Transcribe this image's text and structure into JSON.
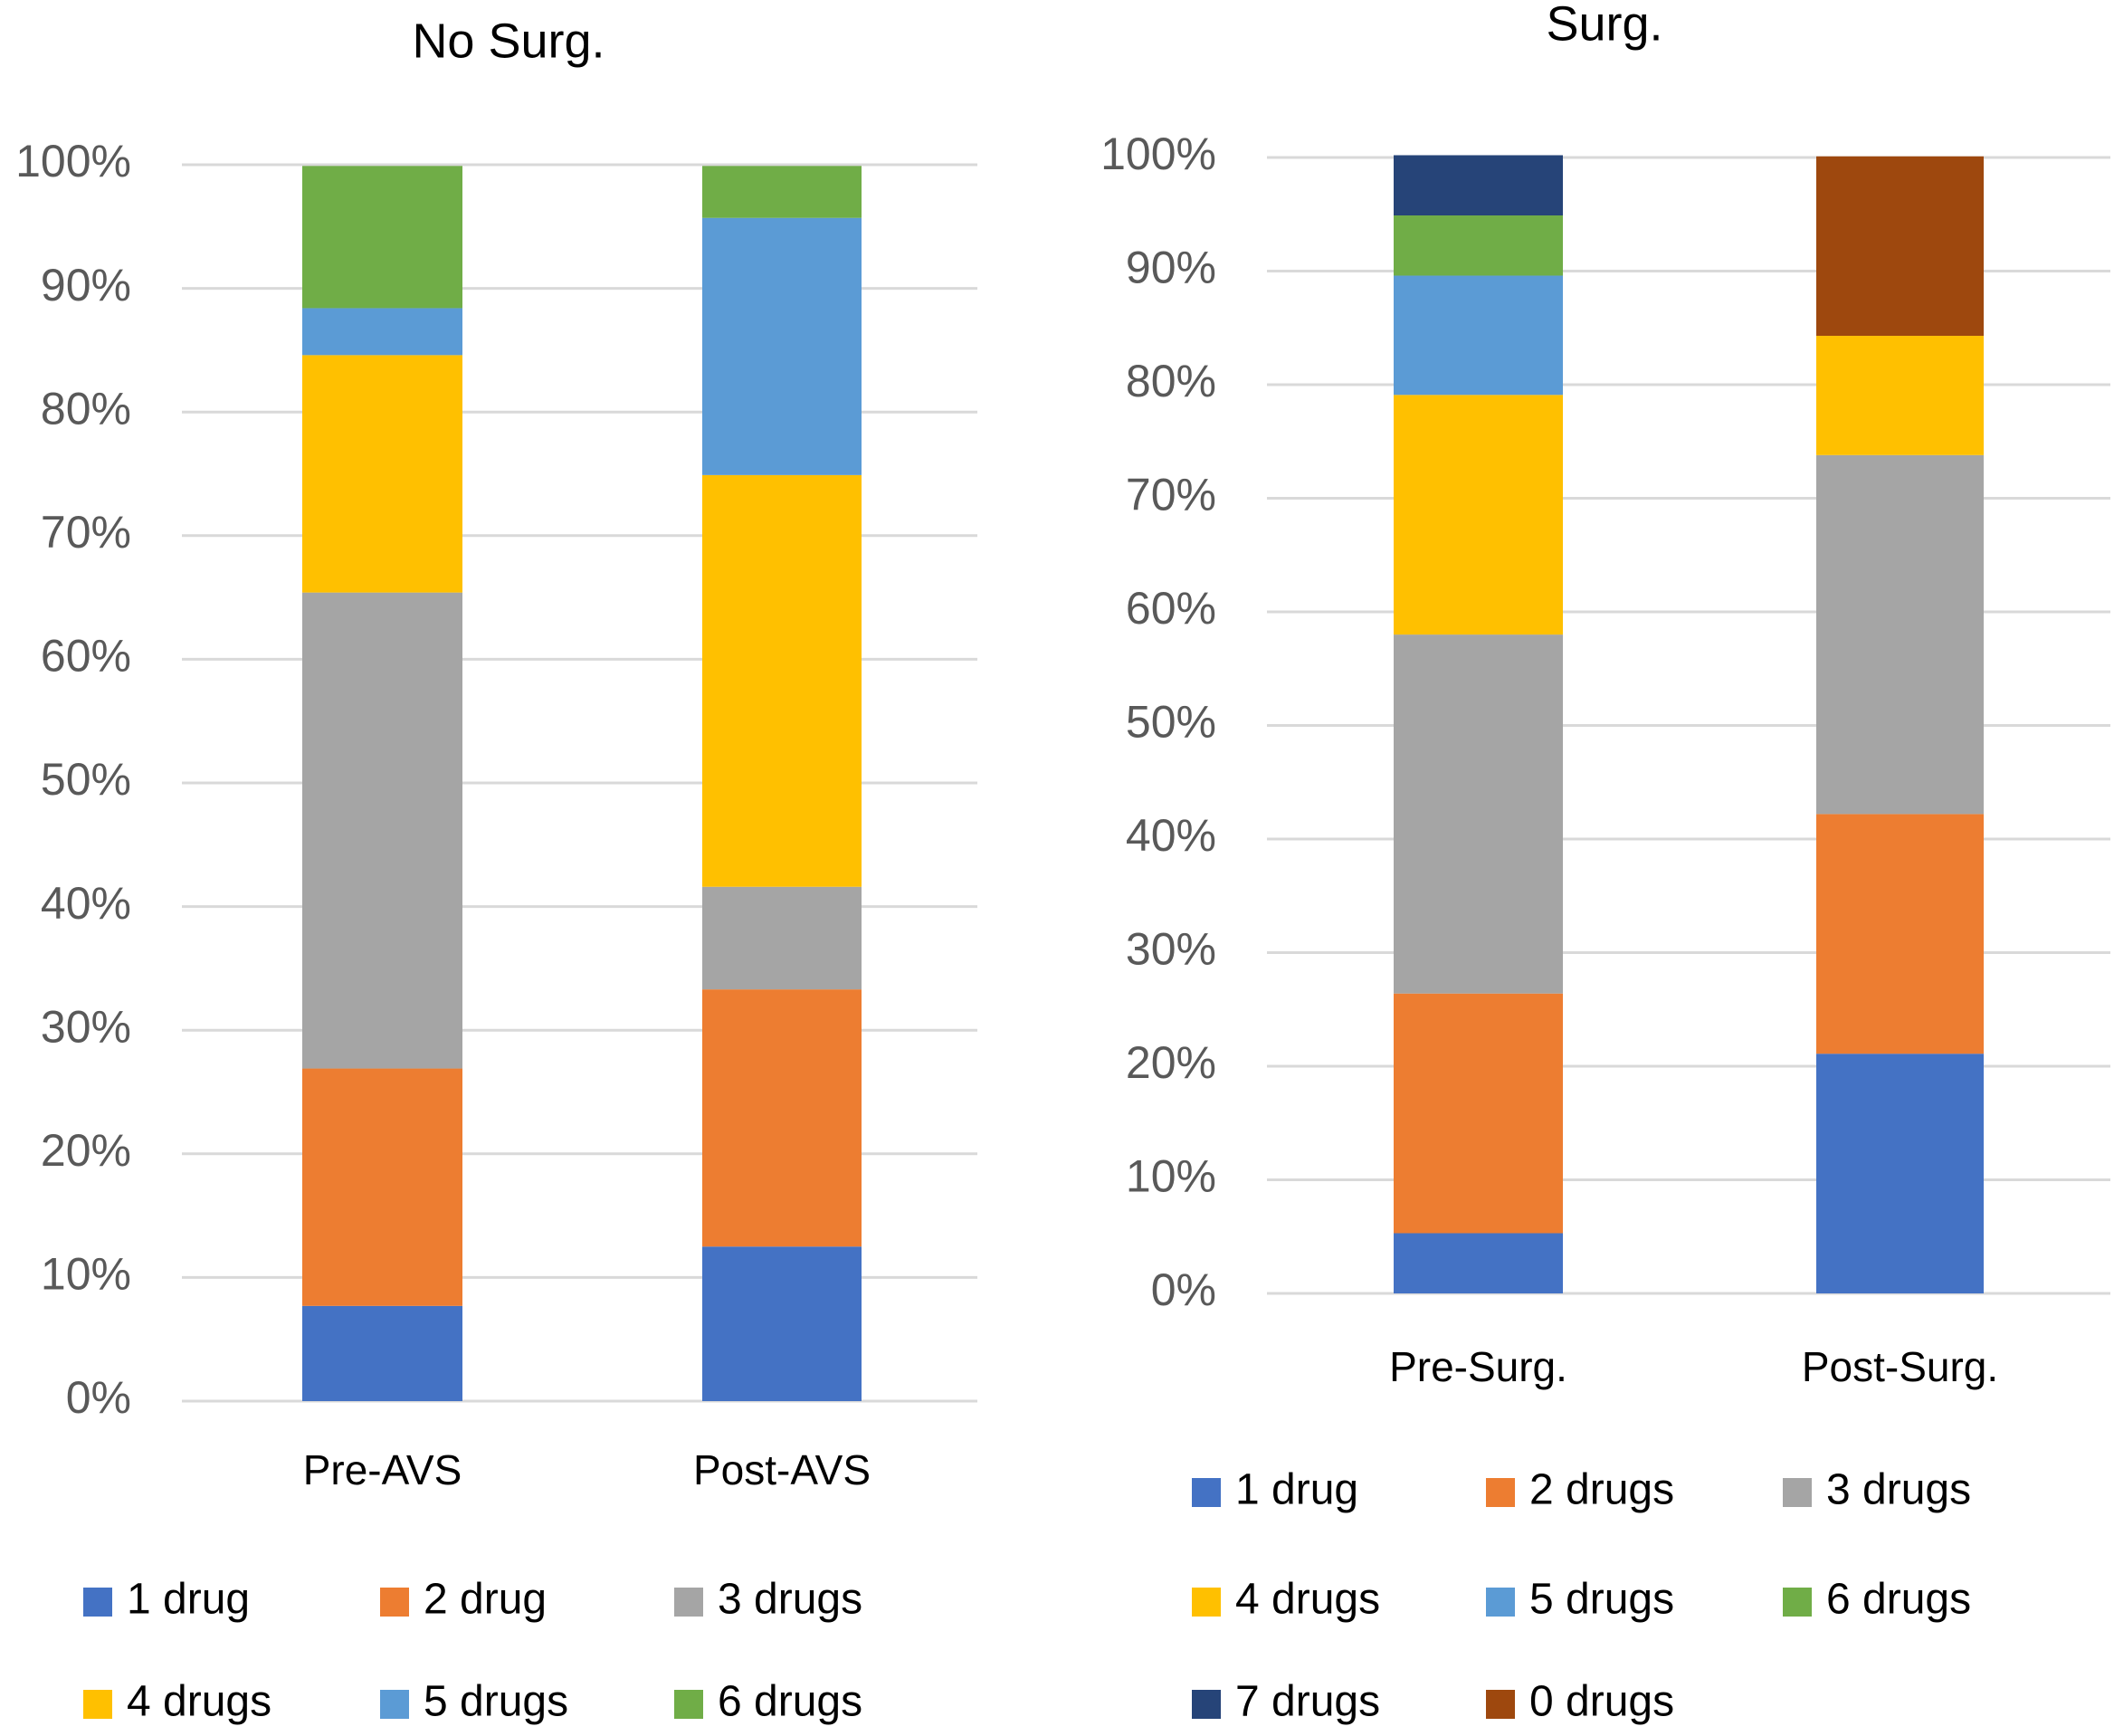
{
  "chart_data": [
    {
      "type": "stacked_bar",
      "title": "No Surg.",
      "categories": [
        "Pre-AVS",
        "Post-AVS"
      ],
      "series": [
        {
          "name": "1 drug",
          "color": "#4472c4",
          "values": [
            7.7,
            12.5
          ]
        },
        {
          "name": "2 drug",
          "color": "#ed7d31",
          "values": [
            19.2,
            20.8
          ]
        },
        {
          "name": "3 drugs",
          "color": "#a5a5a5",
          "values": [
            38.5,
            8.3
          ]
        },
        {
          "name": "4 drugs",
          "color": "#ffc000",
          "values": [
            19.2,
            33.3
          ]
        },
        {
          "name": "5 drugs",
          "color": "#5b9bd5",
          "values": [
            3.8,
            20.8
          ]
        },
        {
          "name": "6 drugs",
          "color": "#70ad47",
          "values": [
            11.5,
            4.2
          ]
        }
      ],
      "ylim": [
        0,
        100
      ],
      "yticks": [
        {
          "value": 0,
          "label": "0%"
        },
        {
          "value": 10,
          "label": "10%"
        },
        {
          "value": 20,
          "label": "20%"
        },
        {
          "value": 30,
          "label": "30%"
        },
        {
          "value": 40,
          "label": "40%"
        },
        {
          "value": 50,
          "label": "50%"
        },
        {
          "value": 60,
          "label": "60%"
        },
        {
          "value": 70,
          "label": "70%"
        },
        {
          "value": 80,
          "label": "80%"
        },
        {
          "value": 90,
          "label": "90%"
        },
        {
          "value": 100,
          "label": "100%"
        }
      ],
      "grid": true,
      "legend": "bottom"
    },
    {
      "type": "stacked_bar",
      "title": "Surg.",
      "categories": [
        "Pre-Surg.",
        "Post-Surg."
      ],
      "series": [
        {
          "name": "1 drug",
          "color": "#4472c4",
          "values": [
            5.3,
            21.1
          ]
        },
        {
          "name": "2 drugs",
          "color": "#ed7d31",
          "values": [
            21.1,
            21.1
          ]
        },
        {
          "name": "3 drugs",
          "color": "#a5a5a5",
          "values": [
            31.6,
            31.6
          ]
        },
        {
          "name": "4 drugs",
          "color": "#ffc000",
          "values": [
            21.1,
            10.5
          ]
        },
        {
          "name": "5 drugs",
          "color": "#5b9bd5",
          "values": [
            10.5,
            0
          ]
        },
        {
          "name": "6 drugs",
          "color": "#70ad47",
          "values": [
            5.3,
            0
          ]
        },
        {
          "name": "7 drugs",
          "color": "#264478",
          "values": [
            5.3,
            0
          ]
        },
        {
          "name": "0 drugs",
          "color": "#9e480e",
          "values": [
            0,
            15.8
          ]
        }
      ],
      "ylim": [
        0,
        100
      ],
      "yticks": [
        {
          "value": 0,
          "label": "0%"
        },
        {
          "value": 10,
          "label": "10%"
        },
        {
          "value": 20,
          "label": "20%"
        },
        {
          "value": 30,
          "label": "30%"
        },
        {
          "value": 40,
          "label": "40%"
        },
        {
          "value": 50,
          "label": "50%"
        },
        {
          "value": 60,
          "label": "60%"
        },
        {
          "value": 70,
          "label": "70%"
        },
        {
          "value": 80,
          "label": "80%"
        },
        {
          "value": 90,
          "label": "90%"
        },
        {
          "value": 100,
          "label": "100%"
        }
      ],
      "grid": true,
      "legend": "bottom"
    }
  ]
}
